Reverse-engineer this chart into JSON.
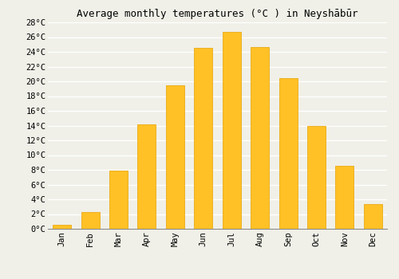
{
  "title": "Average monthly temperatures (°C ) in Neyshābūr",
  "months": [
    "Jan",
    "Feb",
    "Mar",
    "Apr",
    "May",
    "Jun",
    "Jul",
    "Aug",
    "Sep",
    "Oct",
    "Nov",
    "Dec"
  ],
  "values": [
    0.5,
    2.3,
    7.9,
    14.2,
    19.5,
    24.5,
    26.7,
    24.6,
    20.4,
    14.0,
    8.5,
    3.3
  ],
  "bar_color": "#FFC125",
  "bar_edge_color": "#E8A000",
  "ylim": [
    0,
    28
  ],
  "yticks": [
    0,
    2,
    4,
    6,
    8,
    10,
    12,
    14,
    16,
    18,
    20,
    22,
    24,
    26,
    28
  ],
  "ytick_labels": [
    "0°C",
    "2°C",
    "4°C",
    "6°C",
    "8°C",
    "10°C",
    "12°C",
    "14°C",
    "16°C",
    "18°C",
    "20°C",
    "22°C",
    "24°C",
    "26°C",
    "28°C"
  ],
  "bg_color": "#F0F0E8",
  "grid_color": "#FFFFFF",
  "title_fontsize": 9,
  "tick_fontsize": 7.5,
  "font_family": "monospace",
  "bar_width": 0.65
}
